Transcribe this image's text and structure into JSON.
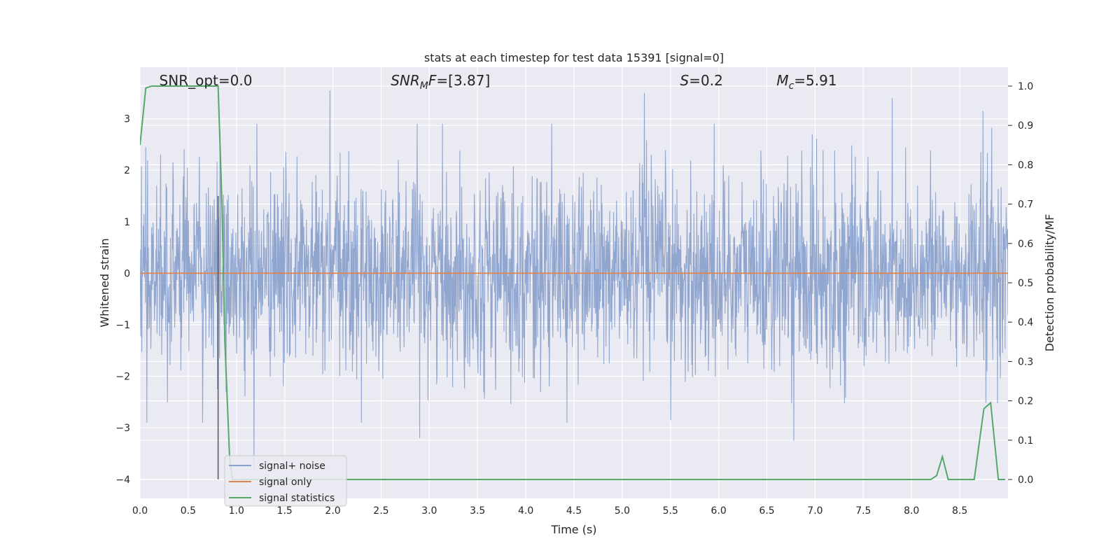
{
  "chart_data": {
    "type": "line",
    "title": "stats at each timestep for test data 15391 [signal=0]",
    "xlabel": "Time (s)",
    "ylabel": "Whitened strain",
    "y2label": "Detection probability/MF",
    "xlim": [
      0.0,
      9.0
    ],
    "ylim": [
      -4.37,
      4.0
    ],
    "y2lim": [
      -0.048,
      1.048
    ],
    "x_ticks": [
      "0.0",
      "0.5",
      "1.0",
      "1.5",
      "2.0",
      "2.5",
      "3.0",
      "3.5",
      "4.0",
      "4.5",
      "5.0",
      "5.5",
      "6.0",
      "6.5",
      "7.0",
      "7.5",
      "8.0",
      "8.5"
    ],
    "y_ticks": [
      "3",
      "2",
      "1",
      "0",
      "−1",
      "−2",
      "−3",
      "−4"
    ],
    "y2_ticks": [
      "1.0",
      "0.9",
      "0.8",
      "0.7",
      "0.6",
      "0.5",
      "0.4",
      "0.3",
      "0.2",
      "0.1",
      "0.0"
    ],
    "grid": true,
    "legend_position": "bottom-left",
    "annotations": [
      {
        "text_parts": [
          {
            "t": "SNR_opt=0.0",
            "style": "normal"
          }
        ],
        "x": 0.2
      },
      {
        "text_parts": [
          {
            "t": "SNR",
            "style": "italic"
          },
          {
            "t": "M",
            "style": "italic-sub"
          },
          {
            "t": "F",
            "style": "italic"
          },
          {
            "t": "=[3.87]",
            "style": "normal"
          }
        ],
        "x": 2.6
      },
      {
        "text_parts": [
          {
            "t": "S",
            "style": "italic"
          },
          {
            "t": "=0.2",
            "style": "normal"
          }
        ],
        "x": 5.6
      },
      {
        "text_parts": [
          {
            "t": "M",
            "style": "italic"
          },
          {
            "t": "c",
            "style": "italic-sub"
          },
          {
            "t": "=5.91",
            "style": "normal"
          }
        ],
        "x": 6.6
      }
    ],
    "vertical_marker": {
      "x": 0.81,
      "y_range": [
        -4.0,
        1.5
      ]
    },
    "series": [
      {
        "name": "signal+ noise",
        "color": "#8ca2cc",
        "axis": "left",
        "kind": "noise",
        "approx_std": 0.95,
        "peaks": [
          [
            0.06,
            2.45
          ],
          [
            1.97,
            3.55
          ],
          [
            5.23,
            3.5
          ],
          [
            7.8,
            3.4
          ],
          [
            8.74,
            3.15
          ],
          [
            0.83,
            2.8
          ],
          [
            1.18,
            -3.8
          ],
          [
            0.07,
            -2.9
          ],
          [
            2.9,
            -3.2
          ],
          [
            6.78,
            -3.25
          ]
        ]
      },
      {
        "name": "signal only",
        "color": "#dd8452",
        "axis": "left",
        "x": [
          0.0,
          9.0
        ],
        "y": [
          0.0,
          0.0
        ]
      },
      {
        "name": "signal statistics",
        "color": "#55a868",
        "axis": "right",
        "x": [
          0.0,
          0.06,
          0.12,
          0.25,
          0.4,
          0.6,
          0.78,
          0.81,
          0.85,
          0.88,
          0.93,
          0.96,
          1.1,
          2.0,
          3.0,
          4.0,
          5.0,
          6.0,
          7.0,
          8.0,
          8.2,
          8.26,
          8.32,
          8.38,
          8.5,
          8.65,
          8.75,
          8.82,
          8.9,
          8.97
        ],
        "y": [
          0.85,
          0.995,
          1.0,
          1.0,
          1.0,
          1.0,
          1.0,
          1.0,
          0.7,
          0.35,
          0.05,
          0.0,
          0.0,
          0.0,
          0.0,
          0.0,
          0.0,
          0.0,
          0.0,
          0.0,
          0.0,
          0.01,
          0.058,
          0.0,
          0.0,
          0.0,
          0.18,
          0.195,
          0.0,
          0.0
        ]
      }
    ]
  }
}
